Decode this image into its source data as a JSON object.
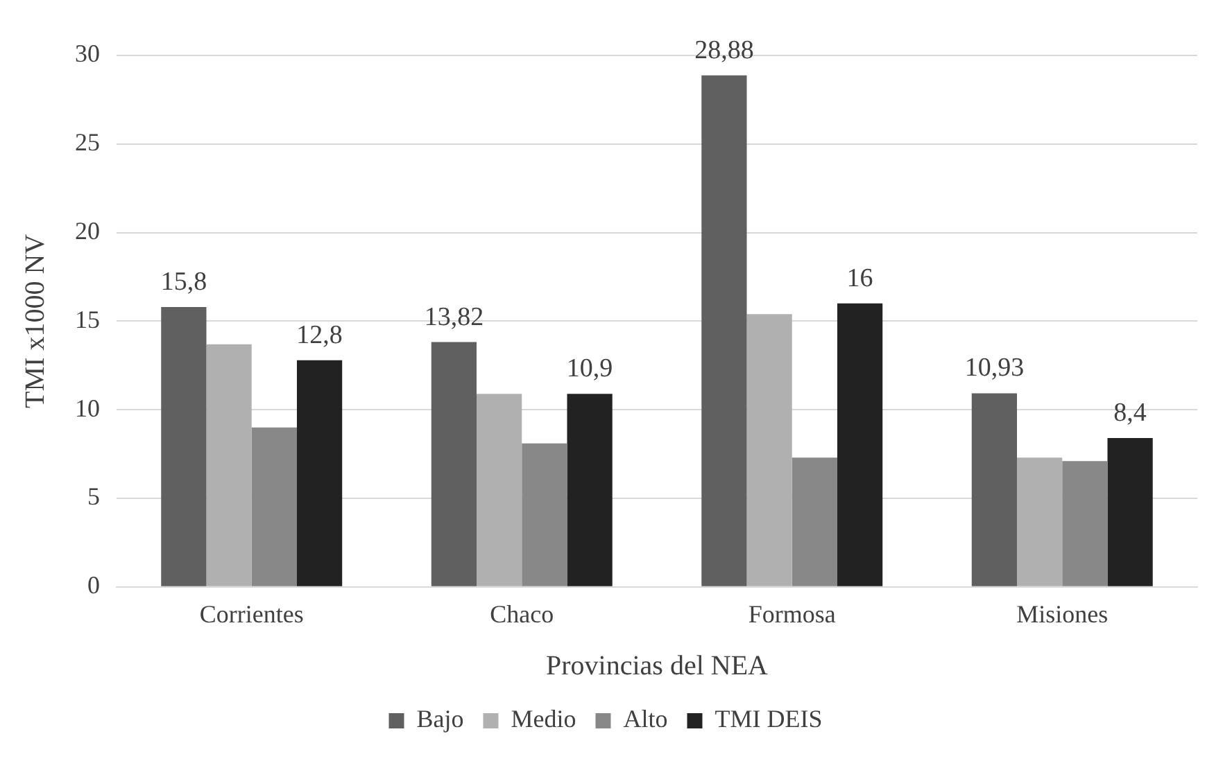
{
  "chart_data": {
    "type": "bar",
    "xlabel": "Provincias del NEA",
    "ylabel": "TMI x1000 NV",
    "categories": [
      "Corrientes",
      "Chaco",
      "Formosa",
      "Misiones"
    ],
    "series": [
      {
        "name": "Bajo",
        "color": "#606060",
        "values": [
          15.8,
          13.82,
          28.88,
          10.93
        ],
        "value_labels": [
          "15,8",
          "13,82",
          "28,88",
          "10,93"
        ]
      },
      {
        "name": "Medio",
        "color": "#b0b0b0",
        "values": [
          13.7,
          10.9,
          15.4,
          7.3
        ]
      },
      {
        "name": "Alto",
        "color": "#888888",
        "values": [
          9.0,
          8.1,
          7.3,
          7.1
        ]
      },
      {
        "name": "TMI DEIS",
        "color": "#222222",
        "values": [
          12.8,
          10.9,
          16,
          8.4
        ],
        "value_labels": [
          "12,8",
          "10,9",
          "16",
          "8,4"
        ]
      }
    ],
    "ylim": [
      0,
      30
    ],
    "yticks": [
      0,
      5,
      10,
      15,
      20,
      25,
      30
    ],
    "grid": "y",
    "legend": "bottom"
  }
}
